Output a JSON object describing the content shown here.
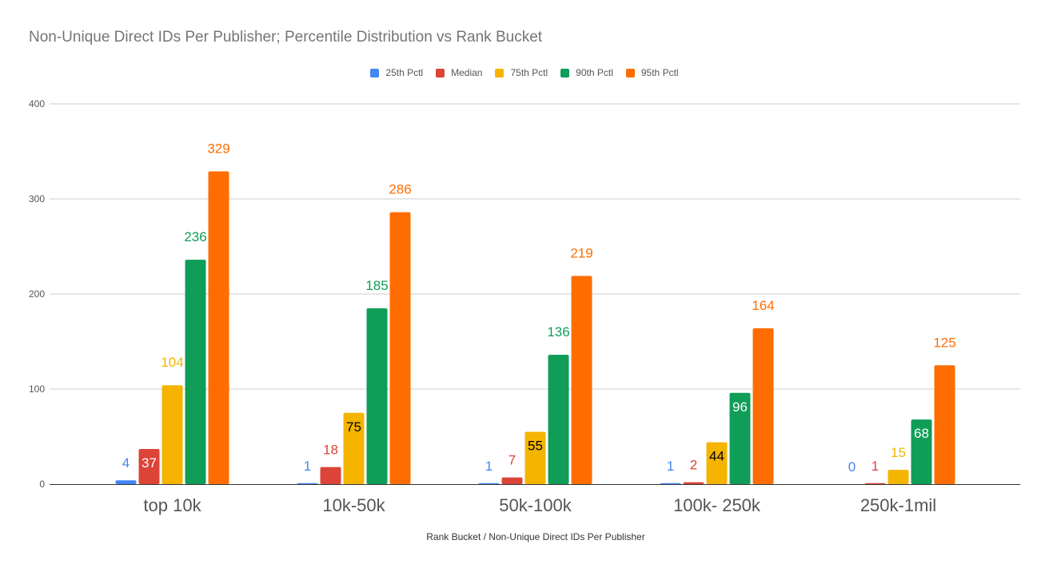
{
  "chart_data": {
    "type": "bar",
    "title": "Non-Unique Direct IDs Per Publisher; Percentile Distribution vs Rank Bucket",
    "xlabel": "Rank Bucket / Non-Unique Direct IDs Per Publisher",
    "ylabel": "",
    "categories": [
      "top 10k",
      "10k-50k",
      "50k-100k",
      "100k- 250k",
      "250k-1mil"
    ],
    "series": [
      {
        "name": "25th Pctl",
        "color": "#4285f4",
        "values": [
          4,
          1,
          1,
          1,
          0
        ]
      },
      {
        "name": "Median",
        "color": "#db4437",
        "values": [
          37,
          18,
          7,
          2,
          1
        ]
      },
      {
        "name": "75th Pctl",
        "color": "#f4b400",
        "values": [
          104,
          75,
          55,
          44,
          15
        ]
      },
      {
        "name": "90th Pctl",
        "color": "#0f9d58",
        "values": [
          236,
          185,
          136,
          96,
          68
        ]
      },
      {
        "name": "95th Pctl",
        "color": "#ff6d01",
        "values": [
          329,
          286,
          219,
          164,
          125
        ]
      }
    ],
    "ylim": [
      0,
      400
    ],
    "yticks": [
      0,
      100,
      200,
      300,
      400
    ],
    "grid": true,
    "legend_position": "top"
  }
}
